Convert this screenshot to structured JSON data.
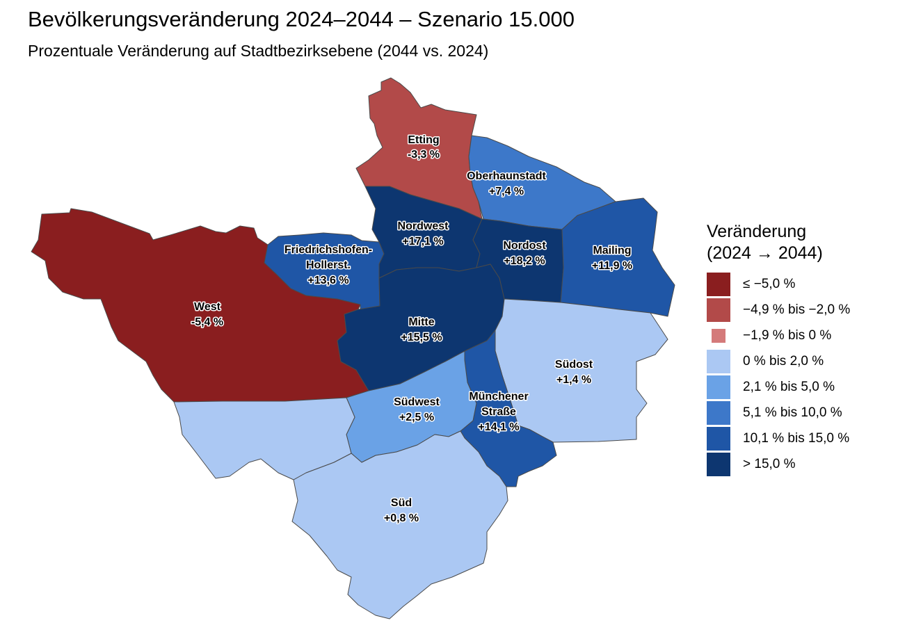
{
  "title": "Bevölkerungsveränderung 2024–2044 – Szenario 15.000",
  "subtitle": "Prozentuale Veränderung auf Stadtbezirksebene (2044 vs. 2024)",
  "districts": {
    "etting": {
      "name": "Etting",
      "value": "-3,3 %",
      "change": -3.3,
      "color": "#b24a49"
    },
    "oberhaunstadt": {
      "name": "Oberhaunstadt",
      "value": "+7,4 %",
      "change": 7.4,
      "color": "#3d78c9"
    },
    "nordwest": {
      "name": "Nordwest",
      "value": "+17,1 %",
      "change": 17.1,
      "color": "#0d3670"
    },
    "nordost": {
      "name": "Nordost",
      "value": "+18,2 %",
      "change": 18.2,
      "color": "#0d3670"
    },
    "mailing": {
      "name": "Mailing",
      "value": "+11,9 %",
      "change": 11.9,
      "color": "#1f56a6"
    },
    "friedrichshofen": {
      "name_line1": "Friedrichshofen-",
      "name_line2": "Hollerst.",
      "value": "+13,6 %",
      "change": 13.6,
      "color": "#1f56a6"
    },
    "west": {
      "name": "West",
      "value": "-5,4 %",
      "change": -5.4,
      "color": "#8a1e1f"
    },
    "mitte": {
      "name": "Mitte",
      "value": "+15,5 %",
      "change": 15.5,
      "color": "#0d3670"
    },
    "suedost": {
      "name": "Südost",
      "value": "+1,4 %",
      "change": 1.4,
      "color": "#abc8f3"
    },
    "suedwest": {
      "name": "Südwest",
      "value": "+2,5 %",
      "change": 2.5,
      "color": "#6aa2e6"
    },
    "muenchener": {
      "name_line1": "Münchener",
      "name_line2": "Straße",
      "value": "+14,1 %",
      "change": 14.1,
      "color": "#1f56a6"
    },
    "sued": {
      "name": "Süd",
      "value": "+0,8 %",
      "change": 0.8,
      "color": "#abc8f3"
    }
  },
  "legend": {
    "title_line1": "Veränderung",
    "title_line2": "(2024 → 2044)",
    "items": [
      {
        "label": "≤ −5,0 %",
        "color": "#8a1e1f"
      },
      {
        "label": "−4,9 % bis −2,0 %",
        "color": "#b24a49"
      },
      {
        "label": "−1,9 % bis 0 %",
        "color": "#d47a7a"
      },
      {
        "label": "0 % bis 2,0 %",
        "color": "#abc8f3"
      },
      {
        "label": "2,1 % bis 5,0 %",
        "color": "#6aa2e6"
      },
      {
        "label": "5,1 % bis 10,0 %",
        "color": "#3d78c9"
      },
      {
        "label": "10,1 % bis 15,0 %",
        "color": "#1f56a6"
      },
      {
        "label": "> 15,0 %",
        "color": "#0d3670"
      }
    ]
  }
}
